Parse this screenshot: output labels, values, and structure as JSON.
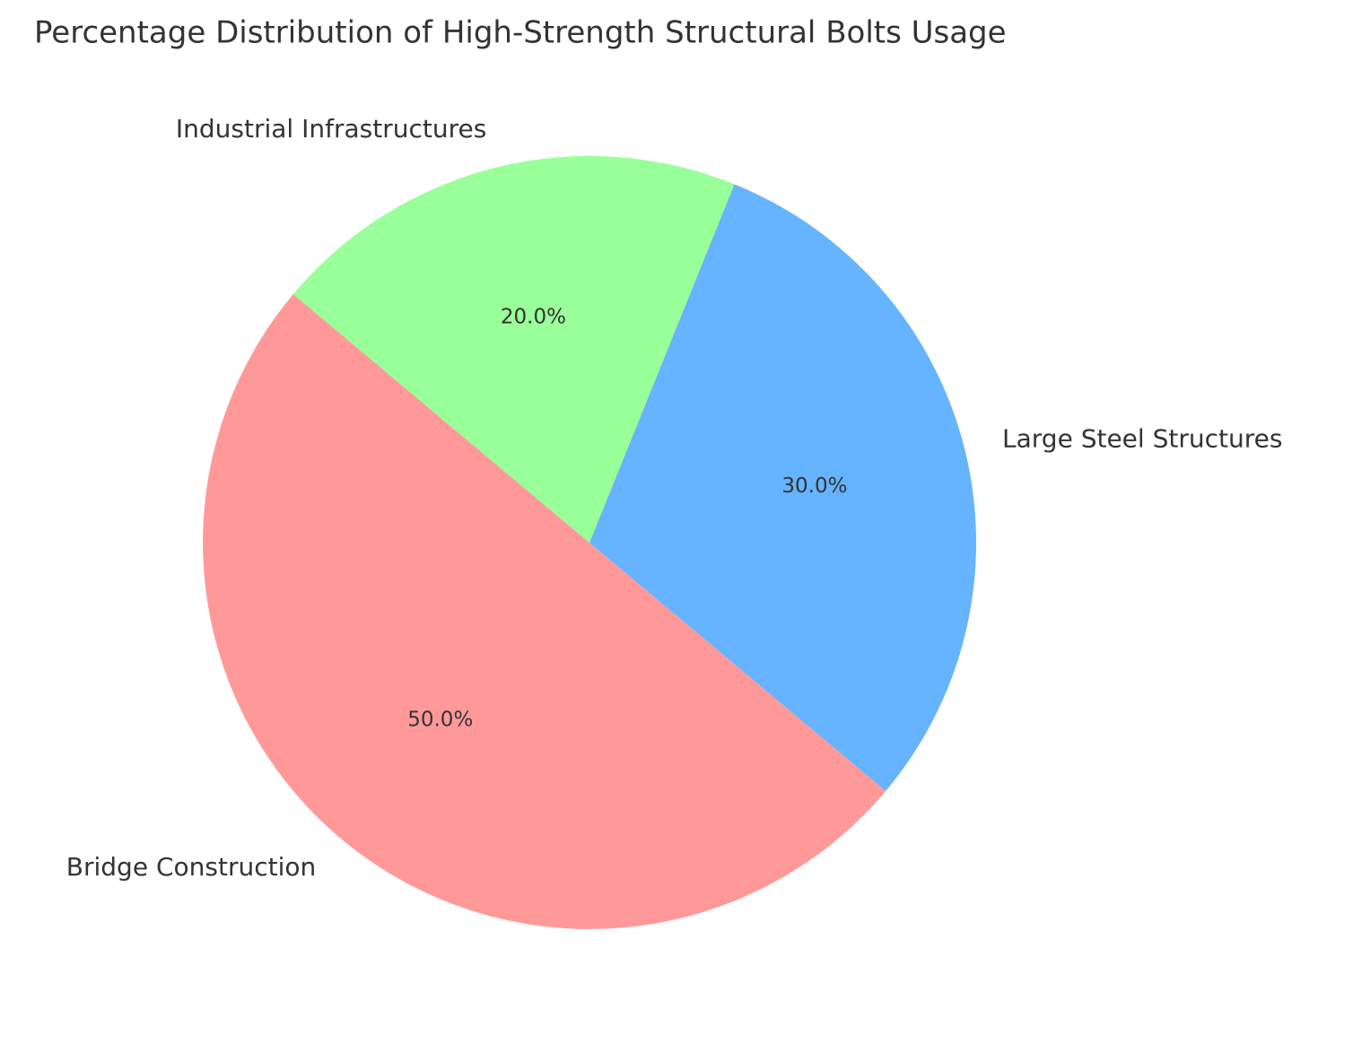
{
  "chart_data": {
    "type": "pie",
    "title": "Percentage Distribution of High-Strength Structural Bolts Usage",
    "categories": [
      "Bridge Construction",
      "Large Steel Structures",
      "Industrial Infrastructures"
    ],
    "values": [
      50,
      30,
      20
    ],
    "value_labels": [
      "50.0%",
      "30.0%",
      "20.0%"
    ],
    "colors": [
      "#ff9999",
      "#66b3ff",
      "#99ff99"
    ]
  }
}
